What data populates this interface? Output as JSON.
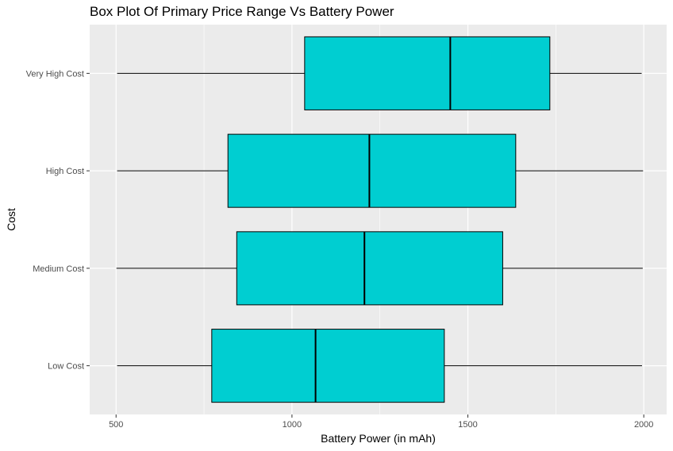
{
  "chart_data": {
    "type": "boxplot",
    "title": "Box Plot Of Primary Price Range Vs Battery Power",
    "xlabel": "Battery Power (in mAh)",
    "ylabel": "Cost",
    "xlim": [
      425,
      2065
    ],
    "x_ticks": [
      500,
      1000,
      1500,
      2000
    ],
    "x_tick_labels": [
      "500",
      "1000",
      "1500",
      "2000"
    ],
    "categories": [
      "Low Cost",
      "Medium Cost",
      "High Cost",
      "Very High Cost"
    ],
    "boxes": [
      {
        "category": "Low Cost",
        "min": 503,
        "q1": 772,
        "median": 1067,
        "q3": 1433,
        "max": 1995
      },
      {
        "category": "Medium Cost",
        "min": 501,
        "q1": 843,
        "median": 1206,
        "q3": 1599,
        "max": 1997
      },
      {
        "category": "High Cost",
        "min": 503,
        "q1": 818,
        "median": 1220,
        "q3": 1636,
        "max": 1998
      },
      {
        "category": "Very High Cost",
        "min": 503,
        "q1": 1036,
        "median": 1450,
        "q3": 1733,
        "max": 1994
      }
    ],
    "box_fill": "#00CED1",
    "panel_background": "#EBEBEB",
    "grid_color": "#FFFFFF",
    "grid": true,
    "legend": "none"
  }
}
